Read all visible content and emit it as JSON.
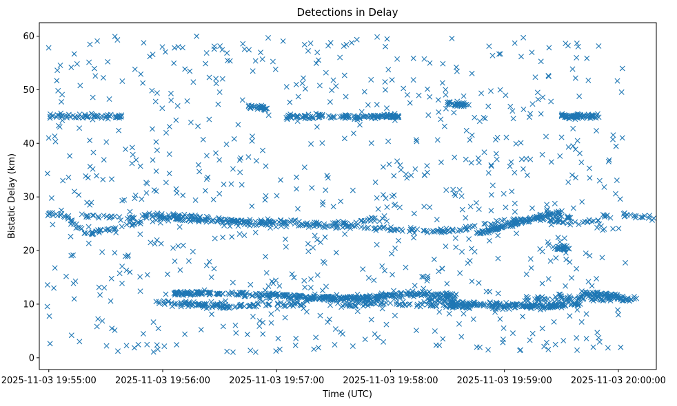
{
  "chart_data": {
    "type": "scatter",
    "title": "Detections in Delay",
    "xlabel": "Time (UTC)",
    "ylabel": "Bistatic Delay (km)",
    "x_type": "time",
    "xlim": [
      "2025-11-03 19:54:55",
      "2025-11-03 20:00:20"
    ],
    "ylim": [
      -2.2,
      62.5
    ],
    "x_ticks": [
      "2025-11-03 19:55:00",
      "2025-11-03 19:56:00",
      "2025-11-03 19:57:00",
      "2025-11-03 19:58:00",
      "2025-11-03 19:59:00",
      "2025-11-03 20:00:00"
    ],
    "y_ticks": [
      0,
      10,
      20,
      30,
      40,
      50,
      60
    ],
    "grid": false,
    "marker": "x",
    "color": "#1f77b4",
    "series": [
      {
        "tracks": [
          {
            "y": [
              [
                0,
                27
              ],
              [
                10,
                26.5
              ],
              [
                20,
                23
              ],
              [
                40,
                24.5
              ],
              [
                60,
                26
              ],
              [
                90,
                25.5
              ],
              [
                120,
                25
              ],
              [
                150,
                24.5
              ],
              [
                180,
                24
              ],
              [
                200,
                23.5
              ],
              [
                220,
                24
              ],
              [
                240,
                25.5
              ],
              [
                260,
                26
              ],
              [
                280,
                25
              ],
              [
                300,
                27
              ],
              [
                320,
                26
              ],
              [
                340,
                25.5
              ],
              [
                360,
                27
              ],
              [
                380,
                26
              ],
              [
                420,
                26.5
              ],
              [
                450,
                25
              ],
              [
                480,
                27.5
              ],
              [
                510,
                26
              ],
              [
                540,
                26
              ],
              [
                560,
                26
              ]
            ],
            "x_start": "2025-11-03 19:54:59",
            "x_step_s": 0.5,
            "count": 600
          },
          {
            "y": [
              [
                0,
                26.5
              ],
              [
                20,
                26
              ],
              [
                40,
                26.8
              ],
              [
                60,
                26.2
              ],
              [
                80,
                25.5
              ],
              [
                100,
                25.5
              ],
              [
                130,
                25
              ],
              [
                160,
                26
              ]
            ],
            "x_start": "2025-11-03 19:55:19",
            "x_step_s": 0.5,
            "count": 150
          },
          {
            "y": [
              [
                0,
                23
              ],
              [
                20,
                25
              ],
              [
                40,
                27
              ],
              [
                50,
                26
              ]
            ],
            "x_start": "2025-11-03 19:58:45",
            "x_step_s": 0.5,
            "count": 120
          },
          {
            "y": [
              [
                0,
                12
              ],
              [
                30,
                12
              ],
              [
                60,
                11.5
              ],
              [
                90,
                11
              ],
              [
                110,
                11
              ]
            ],
            "x_start": "2025-11-03 19:56:05",
            "x_step_s": 0.5,
            "count": 220
          },
          {
            "y": [
              [
                0,
                10.5
              ],
              [
                20,
                10
              ],
              [
                40,
                9.5
              ],
              [
                60,
                10
              ],
              [
                80,
                10
              ]
            ],
            "x_start": "2025-11-03 19:55:55",
            "x_step_s": 0.5,
            "count": 120
          },
          {
            "y": [
              [
                0,
                11
              ],
              [
                20,
                11.2
              ],
              [
                40,
                11.5
              ],
              [
                60,
                12
              ],
              [
                80,
                11.5
              ]
            ],
            "x_start": "2025-11-03 19:57:15",
            "x_step_s": 0.5,
            "count": 160
          },
          {
            "y": [
              [
                0,
                10
              ],
              [
                30,
                10
              ],
              [
                60,
                9.5
              ],
              [
                90,
                9.5
              ],
              [
                120,
                10
              ]
            ],
            "x_start": "2025-11-03 19:57:35",
            "x_step_s": 0.5,
            "count": 140
          },
          {
            "y": [
              [
                0,
                11
              ],
              [
                20,
                10
              ],
              [
                40,
                10
              ],
              [
                60,
                9.5
              ],
              [
                80,
                10
              ]
            ],
            "x_start": "2025-11-03 19:58:20",
            "x_step_s": 0.5,
            "count": 150
          },
          {
            "y": [
              [
                0,
                11
              ],
              [
                20,
                11
              ],
              [
                40,
                11
              ],
              [
                60,
                11
              ]
            ],
            "x_start": "2025-11-03 19:59:10",
            "x_step_s": 0.5,
            "count": 90
          },
          {
            "y": [
              [
                0,
                12
              ],
              [
                10,
                12
              ],
              [
                20,
                11.5
              ]
            ],
            "x_start": "2025-11-03 19:59:40",
            "x_step_s": 0.5,
            "count": 50
          },
          {
            "y": [
              [
                0,
                45
              ],
              [
                20,
                45
              ],
              [
                40,
                45
              ]
            ],
            "x_start": "2025-11-03 19:55:00",
            "x_step_s": 0.5,
            "count": 60
          },
          {
            "y": [
              [
                0,
                47
              ],
              [
                10,
                46.5
              ]
            ],
            "x_start": "2025-11-03 19:56:45",
            "x_step_s": 0.5,
            "count": 30
          },
          {
            "y": [
              [
                0,
                45
              ],
              [
                20,
                45
              ],
              [
                40,
                45
              ]
            ],
            "x_start": "2025-11-03 19:57:05",
            "x_step_s": 0.5,
            "count": 70
          },
          {
            "y": [
              [
                0,
                45
              ],
              [
                20,
                45
              ]
            ],
            "x_start": "2025-11-03 19:57:45",
            "x_step_s": 0.5,
            "count": 50
          },
          {
            "y": [
              [
                0,
                47.5
              ],
              [
                10,
                47
              ]
            ],
            "x_start": "2025-11-03 19:58:30",
            "x_step_s": 0.5,
            "count": 30
          },
          {
            "y": [
              [
                0,
                45
              ],
              [
                20,
                45
              ]
            ],
            "x_start": "2025-11-03 19:59:30",
            "x_step_s": 0.5,
            "count": 70
          },
          {
            "y": [
              [
                0,
                20.5
              ],
              [
                10,
                20.5
              ]
            ],
            "x_start": "2025-11-03 19:59:25",
            "x_step_s": 0.5,
            "count": 25
          }
        ],
        "clutter": {
          "count": 800,
          "y_range": [
            1,
            60
          ],
          "x_range": [
            "2025-11-03 19:54:59",
            "2025-11-03 20:00:04"
          ]
        }
      }
    ]
  }
}
